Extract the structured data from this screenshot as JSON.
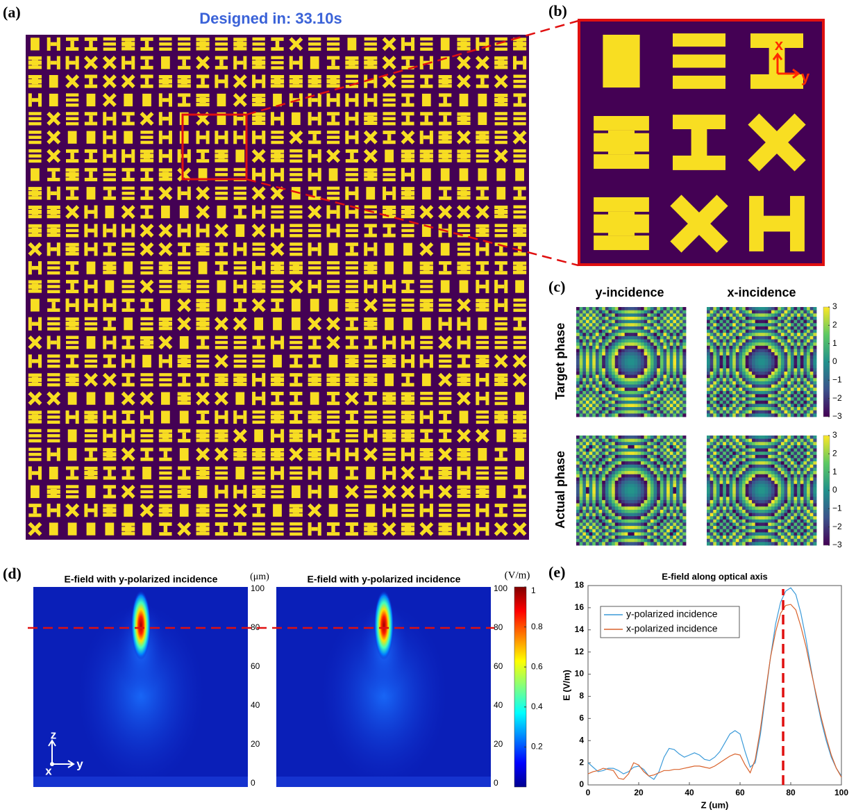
{
  "panel_labels": [
    "(a)",
    "(b)",
    "(c)",
    "(d)",
    "(e)"
  ],
  "designed_text": "Designed in: 33.10s",
  "panel_b_axes": [
    "x",
    "y"
  ],
  "panel_c": {
    "columns": [
      "y-incidence",
      "x-incidence"
    ],
    "rows": [
      "Target phase",
      "Actual phase"
    ],
    "clim": [
      -3,
      3
    ],
    "colorbar_ticks": [
      3,
      2,
      1,
      0,
      {
        "value": -1,
        "label": "−1"
      },
      {
        "value": -2,
        "label": "−2"
      },
      {
        "value": -3,
        "label": "−3"
      }
    ]
  },
  "panel_d": {
    "titles": [
      "E-field with y-polarized incidence",
      "E-field with y-polarized incidence"
    ],
    "z_unit": "(μm)",
    "zlim": [
      0,
      100
    ],
    "zticks": [
      0,
      20,
      40,
      60,
      80,
      100
    ],
    "focus_z": 80,
    "colorbar_unit": "(V/m)",
    "clim": [
      0,
      1
    ],
    "colorbar_ticks": [
      0.2,
      0.4,
      0.6,
      0.8,
      1
    ],
    "axes": [
      "z",
      "x",
      "y"
    ]
  },
  "chart_data": {
    "type": "line",
    "title": "E-field along optical axis",
    "x_label": "Z (um)",
    "y_label": "E (V/m)",
    "xlim": [
      0,
      100
    ],
    "ylim": [
      0,
      18
    ],
    "xticks": [
      0,
      20,
      40,
      60,
      80,
      100
    ],
    "yticks": [
      0,
      2,
      4,
      6,
      8,
      10,
      12,
      14,
      16,
      18
    ],
    "marker_x": 77,
    "legend": "upper-left",
    "x": [
      0,
      2,
      4,
      6,
      8,
      10,
      12,
      14,
      16,
      18,
      20,
      22,
      24,
      26,
      28,
      30,
      32,
      34,
      36,
      38,
      40,
      42,
      44,
      46,
      48,
      50,
      52,
      54,
      56,
      58,
      60,
      62,
      64,
      66,
      68,
      70,
      72,
      74,
      76,
      78,
      80,
      82,
      84,
      86,
      88,
      90,
      92,
      94,
      96,
      98,
      100
    ],
    "series": [
      {
        "name": "y-polarized incidence",
        "color": "#3a9ad9",
        "values": [
          2.0,
          1.6,
          1.2,
          1.3,
          1.5,
          1.5,
          1.3,
          1.0,
          1.2,
          1.6,
          1.7,
          1.4,
          0.8,
          0.5,
          1.2,
          2.5,
          3.3,
          3.2,
          2.8,
          2.5,
          2.7,
          2.9,
          2.7,
          2.3,
          2.2,
          2.5,
          3.0,
          3.8,
          4.6,
          4.9,
          4.6,
          3.0,
          1.6,
          2.0,
          4.5,
          8.0,
          11.5,
          14.5,
          16.5,
          17.5,
          17.8,
          17.2,
          15.5,
          13.2,
          10.5,
          8.0,
          5.8,
          4.0,
          2.5,
          1.5,
          0.8
        ]
      },
      {
        "name": "x-polarized incidence",
        "color": "#d9622b",
        "values": [
          1.0,
          1.2,
          1.3,
          1.5,
          1.4,
          1.3,
          0.6,
          0.5,
          1.0,
          2.0,
          1.8,
          1.2,
          0.8,
          0.9,
          1.1,
          1.3,
          1.3,
          1.4,
          1.4,
          1.5,
          1.6,
          1.7,
          1.7,
          1.6,
          1.5,
          1.7,
          2.0,
          2.3,
          2.6,
          2.8,
          2.7,
          1.8,
          1.1,
          2.3,
          5.0,
          8.3,
          11.5,
          13.8,
          15.5,
          16.2,
          16.3,
          15.8,
          14.3,
          12.5,
          10.3,
          8.2,
          6.1,
          4.3,
          2.7,
          1.5,
          0.7
        ]
      }
    ]
  }
}
